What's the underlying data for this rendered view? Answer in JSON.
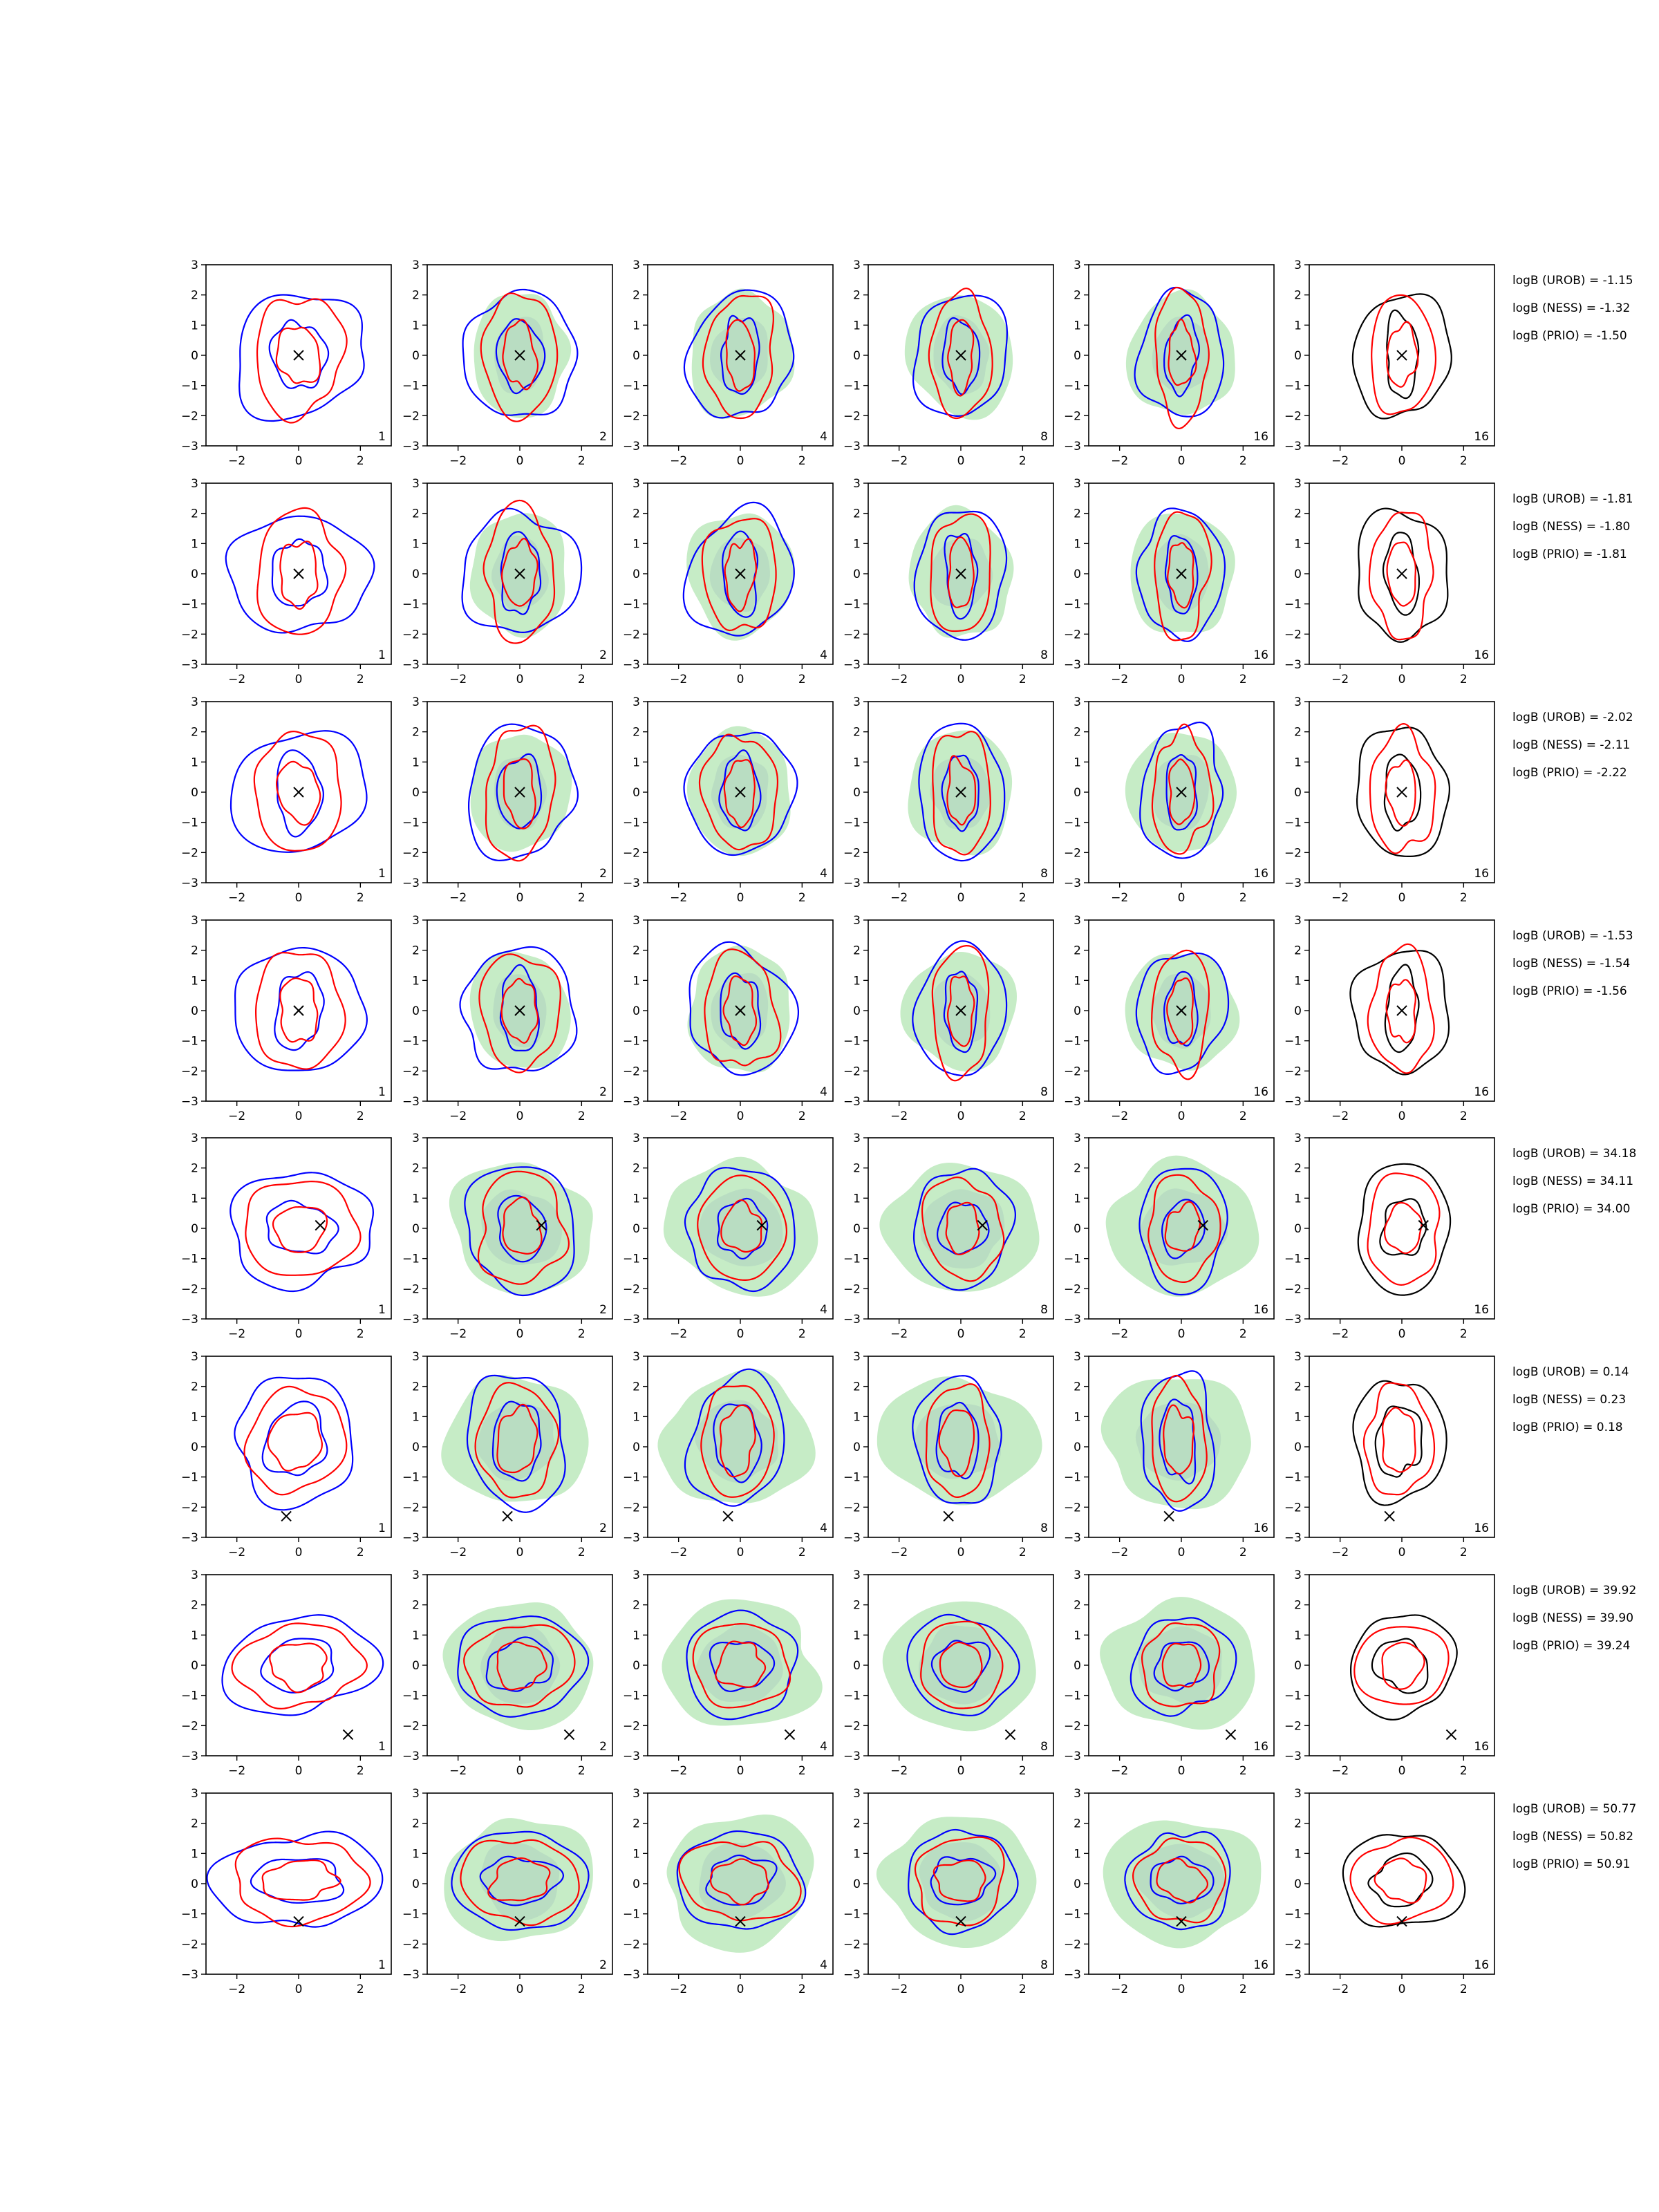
{
  "chart_data": {
    "type": "contour-grid",
    "colors": {
      "uniform_fill": "#c6ecc6",
      "blue_contour": "#0000ff",
      "red_contour": "#ff0000",
      "black_contour": "#000000",
      "marker": "#000000",
      "axes": "#000000"
    },
    "rows": 8,
    "columns": 6,
    "x_range": [
      -3,
      3
    ],
    "y_range": [
      -3,
      3
    ],
    "x_ticks": [
      "−2",
      "0",
      "2"
    ],
    "y_ticks": [
      "3",
      "2",
      "1",
      "0",
      "−1",
      "−2",
      "−3"
    ],
    "panel_counts": [
      "1",
      "2",
      "4",
      "8",
      "16",
      "16"
    ],
    "row_data": [
      {
        "marker": [
          0,
          0
        ],
        "logb": [
          "logB (UROB) = -1.15",
          "logB (NESS) = -1.32",
          "logB (PRIO) = -1.50"
        ]
      },
      {
        "marker": [
          0,
          0
        ],
        "logb": [
          "logB (UROB) = -1.81",
          "logB (NESS) = -1.80",
          "logB (PRIO) = -1.81"
        ]
      },
      {
        "marker": [
          0,
          0
        ],
        "logb": [
          "logB (UROB) = -2.02",
          "logB (NESS) = -2.11",
          "logB (PRIO) = -2.22"
        ]
      },
      {
        "marker": [
          0,
          0
        ],
        "logb": [
          "logB (UROB) = -1.53",
          "logB (NESS) = -1.54",
          "logB (PRIO) = -1.56"
        ]
      },
      {
        "marker": [
          0.7,
          0.1
        ],
        "logb": [
          "logB (UROB) = 34.18",
          "logB (NESS) = 34.11",
          "logB (PRIO) = 34.00"
        ]
      },
      {
        "marker": [
          -0.4,
          -2.3
        ],
        "logb": [
          "logB (UROB) = 0.14",
          "logB (NESS) = 0.23",
          "logB (PRIO) = 0.18"
        ]
      },
      {
        "marker": [
          1.6,
          -2.3
        ],
        "logb": [
          "logB (UROB) = 39.92",
          "logB (NESS) = 39.90",
          "logB (PRIO) = 39.24"
        ]
      },
      {
        "marker": [
          0,
          -1.25
        ],
        "logb": [
          "logB (UROB) = 50.77",
          "logB (NESS) = 50.82",
          "logB (PRIO) = 50.91"
        ]
      }
    ]
  }
}
